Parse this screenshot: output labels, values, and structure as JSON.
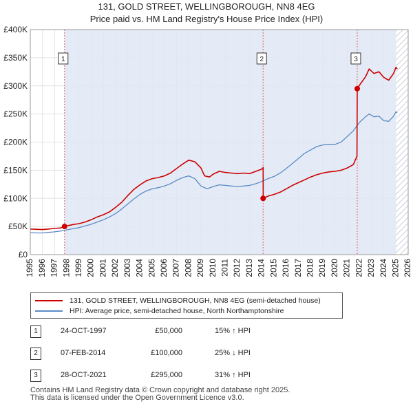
{
  "title_line1": "131, GOLD STREET, WELLINGBOROUGH, NN8 4EG",
  "title_line2": "Price paid vs. HM Land Registry's House Price Index (HPI)",
  "colors": {
    "property": "#cc0000",
    "hpi": "#5b8ac6",
    "shade": "#dfe8f5",
    "hatch": "#c8cfd9",
    "marker_line": "#e06060"
  },
  "chart_data": {
    "type": "line",
    "title": "Price paid vs. HM Land Registry's House Price Index (HPI)",
    "xlabel": "",
    "ylabel": "",
    "xlim": [
      1995,
      2026
    ],
    "ylim": [
      0,
      400000
    ],
    "x_ticks": [
      1995,
      1996,
      1997,
      1998,
      1999,
      2000,
      2001,
      2002,
      2003,
      2004,
      2005,
      2006,
      2007,
      2008,
      2009,
      2010,
      2011,
      2012,
      2013,
      2014,
      2015,
      2016,
      2017,
      2018,
      2019,
      2020,
      2021,
      2022,
      2023,
      2024,
      2025,
      2026
    ],
    "y_ticks": [
      {
        "value": 0,
        "label": "£0"
      },
      {
        "value": 50000,
        "label": "£50K"
      },
      {
        "value": 100000,
        "label": "£100K"
      },
      {
        "value": 150000,
        "label": "£150K"
      },
      {
        "value": 200000,
        "label": "£200K"
      },
      {
        "value": 250000,
        "label": "£250K"
      },
      {
        "value": 300000,
        "label": "£300K"
      },
      {
        "value": 350000,
        "label": "£350K"
      },
      {
        "value": 400000,
        "label": "£400K"
      }
    ],
    "forecast_from": 2025.0,
    "series": [
      {
        "name": "131, GOLD STREET, WELLINGBOROUGH, NN8 4EG (semi-detached house)",
        "points": [
          [
            1995.0,
            45500
          ],
          [
            1995.5,
            45000
          ],
          [
            1996.0,
            44500
          ],
          [
            1996.5,
            45500
          ],
          [
            1997.0,
            46500
          ],
          [
            1997.5,
            47500
          ],
          [
            1997.81,
            50000
          ],
          [
            1998.0,
            51000
          ],
          [
            1998.5,
            53500
          ],
          [
            1999.0,
            55000
          ],
          [
            1999.5,
            58000
          ],
          [
            2000.0,
            62000
          ],
          [
            2000.5,
            67000
          ],
          [
            2001.0,
            71000
          ],
          [
            2001.5,
            76000
          ],
          [
            2002.0,
            84000
          ],
          [
            2002.5,
            93000
          ],
          [
            2003.0,
            105000
          ],
          [
            2003.5,
            116000
          ],
          [
            2004.0,
            124000
          ],
          [
            2004.5,
            131000
          ],
          [
            2005.0,
            135000
          ],
          [
            2005.5,
            137000
          ],
          [
            2006.0,
            140000
          ],
          [
            2006.5,
            145000
          ],
          [
            2007.0,
            153000
          ],
          [
            2007.5,
            161000
          ],
          [
            2008.0,
            168000
          ],
          [
            2008.5,
            165000
          ],
          [
            2009.0,
            154000
          ],
          [
            2009.3,
            140000
          ],
          [
            2009.7,
            138000
          ],
          [
            2010.0,
            143000
          ],
          [
            2010.5,
            148000
          ],
          [
            2011.0,
            146000
          ],
          [
            2011.5,
            145000
          ],
          [
            2012.0,
            144000
          ],
          [
            2012.5,
            145000
          ],
          [
            2013.0,
            144000
          ],
          [
            2013.5,
            148000
          ],
          [
            2014.0,
            152000
          ],
          [
            2014.1,
            155000
          ],
          [
            2014.11,
            100000
          ],
          [
            2014.5,
            104000
          ],
          [
            2015.0,
            107000
          ],
          [
            2015.5,
            111000
          ],
          [
            2016.0,
            117000
          ],
          [
            2016.5,
            123000
          ],
          [
            2017.0,
            128000
          ],
          [
            2017.5,
            133000
          ],
          [
            2018.0,
            138000
          ],
          [
            2018.5,
            142000
          ],
          [
            2019.0,
            145000
          ],
          [
            2019.5,
            147000
          ],
          [
            2020.0,
            148000
          ],
          [
            2020.5,
            150000
          ],
          [
            2021.0,
            154000
          ],
          [
            2021.5,
            160000
          ],
          [
            2021.8,
            175000
          ],
          [
            2021.82,
            295000
          ],
          [
            2022.0,
            301000
          ],
          [
            2022.5,
            316000
          ],
          [
            2022.8,
            330000
          ],
          [
            2023.2,
            322000
          ],
          [
            2023.6,
            325000
          ],
          [
            2024.0,
            315000
          ],
          [
            2024.4,
            310000
          ],
          [
            2024.8,
            322000
          ],
          [
            2025.0,
            333000
          ],
          [
            2025.1,
            330000
          ]
        ]
      },
      {
        "name": "HPI: Average price, semi-detached house, North Northamptonshire",
        "points": [
          [
            1995.0,
            39000
          ],
          [
            1995.5,
            38500
          ],
          [
            1996.0,
            38500
          ],
          [
            1996.5,
            39500
          ],
          [
            1997.0,
            40500
          ],
          [
            1997.5,
            42000
          ],
          [
            1998.0,
            44000
          ],
          [
            1998.5,
            46000
          ],
          [
            1999.0,
            48000
          ],
          [
            1999.5,
            51000
          ],
          [
            2000.0,
            54000
          ],
          [
            2000.5,
            58000
          ],
          [
            2001.0,
            62000
          ],
          [
            2001.5,
            67000
          ],
          [
            2002.0,
            73000
          ],
          [
            2002.5,
            81000
          ],
          [
            2003.0,
            90000
          ],
          [
            2003.5,
            99000
          ],
          [
            2004.0,
            107000
          ],
          [
            2004.5,
            113000
          ],
          [
            2005.0,
            117000
          ],
          [
            2005.5,
            119000
          ],
          [
            2006.0,
            122000
          ],
          [
            2006.5,
            126000
          ],
          [
            2007.0,
            132000
          ],
          [
            2007.5,
            137000
          ],
          [
            2008.0,
            140000
          ],
          [
            2008.5,
            135000
          ],
          [
            2009.0,
            122000
          ],
          [
            2009.5,
            117000
          ],
          [
            2010.0,
            121000
          ],
          [
            2010.5,
            124000
          ],
          [
            2011.0,
            123000
          ],
          [
            2011.5,
            122000
          ],
          [
            2012.0,
            121000
          ],
          [
            2012.5,
            122000
          ],
          [
            2013.0,
            123000
          ],
          [
            2013.5,
            126000
          ],
          [
            2014.0,
            130000
          ],
          [
            2014.5,
            135000
          ],
          [
            2015.0,
            139000
          ],
          [
            2015.5,
            145000
          ],
          [
            2016.0,
            153000
          ],
          [
            2016.5,
            162000
          ],
          [
            2017.0,
            171000
          ],
          [
            2017.5,
            180000
          ],
          [
            2018.0,
            186000
          ],
          [
            2018.5,
            192000
          ],
          [
            2019.0,
            195000
          ],
          [
            2019.5,
            196000
          ],
          [
            2020.0,
            196000
          ],
          [
            2020.5,
            200000
          ],
          [
            2021.0,
            210000
          ],
          [
            2021.5,
            220000
          ],
          [
            2022.0,
            235000
          ],
          [
            2022.5,
            245000
          ],
          [
            2022.8,
            250000
          ],
          [
            2023.2,
            245000
          ],
          [
            2023.6,
            246000
          ],
          [
            2024.0,
            238000
          ],
          [
            2024.4,
            237000
          ],
          [
            2024.8,
            246000
          ],
          [
            2025.0,
            254000
          ],
          [
            2025.1,
            252000
          ]
        ]
      }
    ],
    "transactions": [
      {
        "id": "1",
        "x": 1997.81,
        "price": 50000,
        "date": "24-OCT-1997",
        "price_label": "£50,000",
        "hpi": "15% ↑ HPI"
      },
      {
        "id": "2",
        "x": 2014.1,
        "price": 100000,
        "date": "07-FEB-2014",
        "price_label": "£100,000",
        "hpi": "25% ↓ HPI"
      },
      {
        "id": "3",
        "x": 2021.82,
        "price": 295000,
        "date": "28-OCT-2021",
        "price_label": "£295,000",
        "hpi": "31% ↑ HPI"
      }
    ]
  },
  "legend": {
    "property": "131, GOLD STREET, WELLINGBOROUGH, NN8 4EG (semi-detached house)",
    "hpi": "HPI: Average price, semi-detached house, North Northamptonshire"
  },
  "footer": {
    "line1": "Contains HM Land Registry data © Crown copyright and database right 2025.",
    "line2": "This data is licensed under the Open Government Licence v3.0."
  }
}
